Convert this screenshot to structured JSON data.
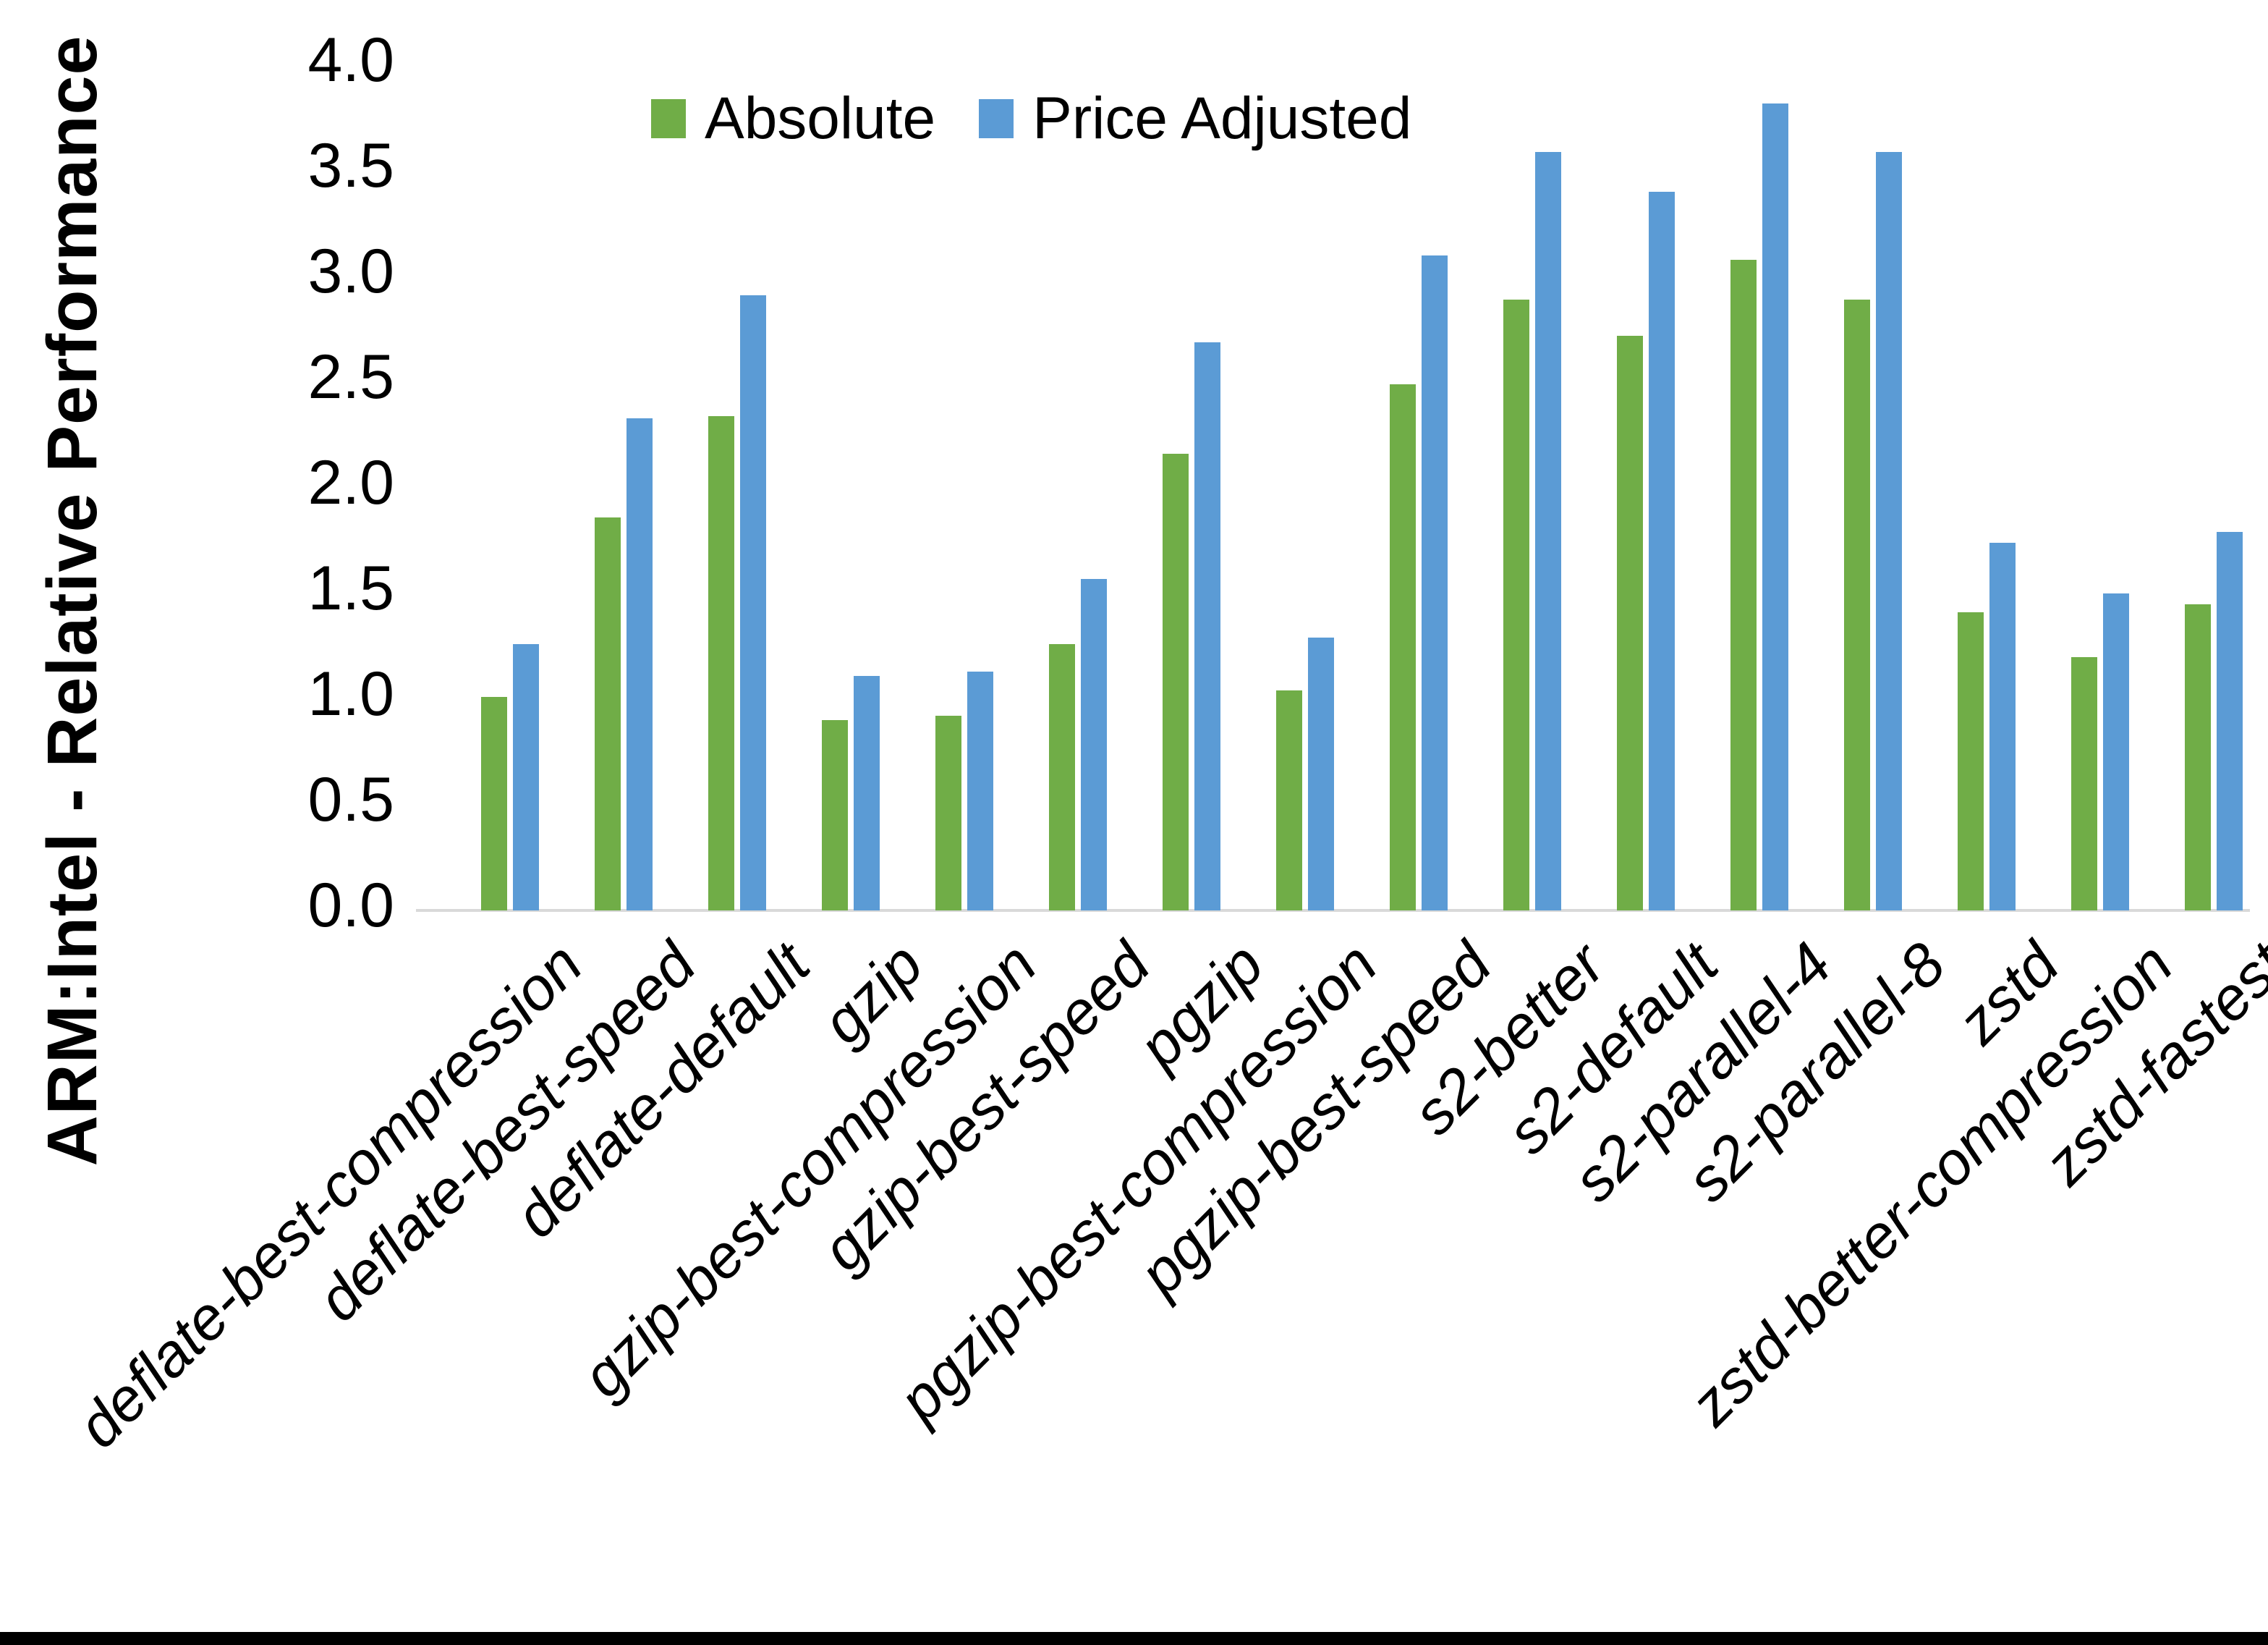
{
  "axis": {
    "line_color": "#d9d9d9",
    "text_color": "#000000"
  },
  "legend": {
    "items": [
      {
        "label": "Absolute",
        "color": "#70AD47"
      },
      {
        "label": "Price Adjusted",
        "color": "#5B9BD5"
      }
    ]
  },
  "chart_data": {
    "type": "bar",
    "title": "",
    "xlabel": "",
    "ylabel": "ARM:Intel - Relative Performance",
    "ylim": [
      0.0,
      4.0
    ],
    "ytick_step": 0.5,
    "yticks": [
      "0.0",
      "0.5",
      "1.0",
      "1.5",
      "2.0",
      "2.5",
      "3.0",
      "3.5",
      "4.0"
    ],
    "grid": false,
    "legend_position": "top",
    "categories": [
      "deflate-best-compression",
      "deflate-best-speed",
      "deflate-default",
      "gzip",
      "gzip-best-compression",
      "gzip-best-speed",
      "pgzip",
      "pgzip-best-compression",
      "pgzip-best-speed",
      "s2-better",
      "s2-default",
      "s2-parallel-4",
      "s2-parallel-8",
      "zstd",
      "zstd-better-compression",
      "zstd-fastest"
    ],
    "series": [
      {
        "name": "Absolute",
        "color": "#70AD47",
        "values": [
          1.01,
          1.86,
          2.34,
          0.9,
          0.92,
          1.26,
          2.16,
          1.04,
          2.49,
          2.89,
          2.72,
          3.08,
          2.89,
          1.41,
          1.2,
          1.45
        ]
      },
      {
        "name": "Price Adjusted",
        "color": "#5B9BD5",
        "values": [
          1.26,
          2.33,
          2.91,
          1.11,
          1.13,
          1.57,
          2.69,
          1.29,
          3.1,
          3.59,
          3.4,
          3.82,
          3.59,
          1.74,
          1.5,
          1.79
        ]
      }
    ]
  }
}
